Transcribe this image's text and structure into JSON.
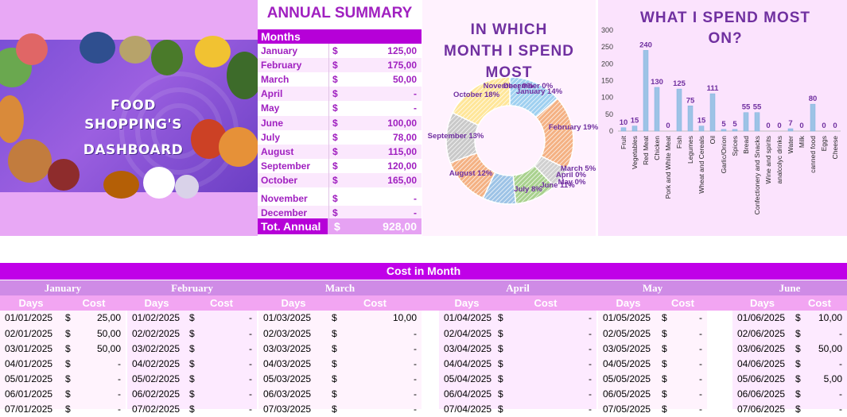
{
  "banner": {
    "title_line1": "FOOD SHOPPING'S",
    "title_line2": "DASHBOARD"
  },
  "summary": {
    "title": "ANNUAL SUMMARY",
    "header": "Months",
    "currency": "$",
    "rows": [
      {
        "month": "January",
        "value": "125,00"
      },
      {
        "month": "February",
        "value": "175,00"
      },
      {
        "month": "March",
        "value": "50,00"
      },
      {
        "month": "April",
        "value": "-"
      },
      {
        "month": "May",
        "value": "-"
      },
      {
        "month": "June",
        "value": "100,00"
      },
      {
        "month": "July",
        "value": "78,00"
      },
      {
        "month": "August",
        "value": "115,00"
      },
      {
        "month": "September",
        "value": "120,00"
      },
      {
        "month": "October",
        "value": "165,00"
      },
      {
        "month": "November",
        "value": "-"
      },
      {
        "month": "December",
        "value": "-"
      }
    ],
    "total_label": "Tot. Annual",
    "total_value": "928,00"
  },
  "donut": {
    "title_line1": "IN WHICH",
    "title_line2": "MONTH I SPEND",
    "title_line3": "MOST"
  },
  "bars": {
    "title_line1": "WHAT I SPEND MOST",
    "title_line2": "ON?"
  },
  "chart_data": [
    {
      "type": "pie",
      "title": "IN WHICH MONTH I SPEND MOST",
      "categories": [
        "January",
        "February",
        "March",
        "April",
        "May",
        "June",
        "July",
        "August",
        "September",
        "October",
        "November",
        "December"
      ],
      "values": [
        125,
        175,
        50,
        0,
        0,
        100,
        78,
        115,
        120,
        165,
        0,
        0
      ],
      "labels": [
        "January 14%",
        "February 19%",
        "March 5%",
        "April 0%",
        "May 0%",
        "June 11%",
        "July 8%",
        "August 12%",
        "September 13%",
        "October 18%",
        "November 0%",
        "December 0%"
      ],
      "colors": [
        "#9fd0f0",
        "#f4b183",
        "#d0d0d0",
        "#ffd966",
        "#8fb4e3",
        "#a9d18e",
        "#9dc3e6",
        "#f4b183",
        "#c9c9c9",
        "#ffe699",
        "#8faadc",
        "#c5e0b4"
      ]
    },
    {
      "type": "bar",
      "title": "WHAT I SPEND MOST ON?",
      "categories": [
        "Fruit",
        "Vegetables",
        "Red Meat",
        "Chicken",
        "Pork and White Meat",
        "Fish",
        "Legumes",
        "Wheat and Cereals",
        "Oil",
        "Garlic/Onion",
        "Spices",
        "Bread",
        "Confectionery and Snacks",
        "Wine and spirits",
        "analcolyc drinks",
        "Water",
        "Milk",
        "canned food",
        "Eggs",
        "Cheese"
      ],
      "values": [
        10,
        15,
        240,
        130,
        0,
        125,
        75,
        15,
        111,
        5,
        5,
        55,
        55,
        0,
        0,
        7,
        0,
        80,
        0,
        0
      ],
      "ylim": [
        0,
        300
      ],
      "yticks": [
        0,
        50,
        100,
        150,
        200,
        250,
        300
      ],
      "bar_color": "#9dc3e6",
      "label_color": "#7030a0"
    }
  ],
  "cost": {
    "title": "Cost in Month",
    "days_label": "Days",
    "cost_label": "Cost",
    "currency": "$",
    "months": [
      {
        "name": "January",
        "rows": [
          [
            "01/01/2025",
            "25,00"
          ],
          [
            "02/01/2025",
            "50,00"
          ],
          [
            "03/01/2025",
            "50,00"
          ],
          [
            "04/01/2025",
            "-"
          ],
          [
            "05/01/2025",
            "-"
          ],
          [
            "06/01/2025",
            "-"
          ],
          [
            "07/01/2025",
            "-"
          ]
        ]
      },
      {
        "name": "February",
        "rows": [
          [
            "01/02/2025",
            "-"
          ],
          [
            "02/02/2025",
            "-"
          ],
          [
            "03/02/2025",
            "-"
          ],
          [
            "04/02/2025",
            "-"
          ],
          [
            "05/02/2025",
            "-"
          ],
          [
            "06/02/2025",
            "-"
          ],
          [
            "07/02/2025",
            "-"
          ]
        ]
      },
      {
        "name": "March",
        "rows": [
          [
            "01/03/2025",
            "10,00"
          ],
          [
            "02/03/2025",
            "-"
          ],
          [
            "03/03/2025",
            "-"
          ],
          [
            "04/03/2025",
            "-"
          ],
          [
            "05/03/2025",
            "-"
          ],
          [
            "06/03/2025",
            "-"
          ],
          [
            "07/03/2025",
            "-"
          ]
        ]
      },
      {
        "name": "April",
        "rows": [
          [
            "01/04/2025",
            "-"
          ],
          [
            "02/04/2025",
            "-"
          ],
          [
            "03/04/2025",
            "-"
          ],
          [
            "04/04/2025",
            "-"
          ],
          [
            "05/04/2025",
            "-"
          ],
          [
            "06/04/2025",
            "-"
          ],
          [
            "07/04/2025",
            "-"
          ]
        ]
      },
      {
        "name": "May",
        "rows": [
          [
            "01/05/2025",
            "-"
          ],
          [
            "02/05/2025",
            "-"
          ],
          [
            "03/05/2025",
            "-"
          ],
          [
            "04/05/2025",
            "-"
          ],
          [
            "05/05/2025",
            "-"
          ],
          [
            "06/05/2025",
            "-"
          ],
          [
            "07/05/2025",
            "-"
          ]
        ]
      },
      {
        "name": "June",
        "rows": [
          [
            "01/06/2025",
            "10,00"
          ],
          [
            "02/06/2025",
            "-"
          ],
          [
            "03/06/2025",
            "50,00"
          ],
          [
            "04/06/2025",
            "-"
          ],
          [
            "05/06/2025",
            "5,00"
          ],
          [
            "06/06/2025",
            "-"
          ],
          [
            "07/06/2025",
            "-"
          ]
        ]
      }
    ]
  }
}
